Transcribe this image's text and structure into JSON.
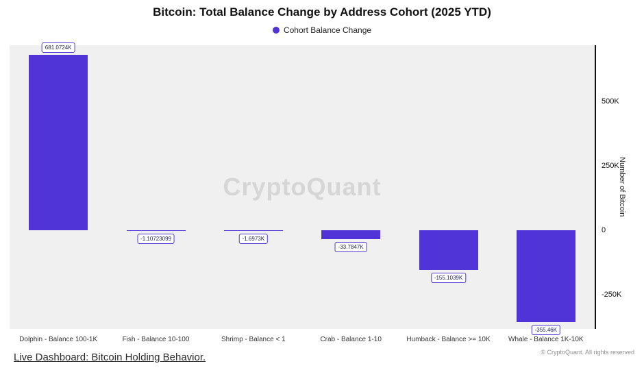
{
  "header": {
    "title": "Bitcoin: Total Balance Change by Address Cohort (2025 YTD)",
    "legend_label": "Cohort Balance Change"
  },
  "watermark": "CryptoQuant",
  "chart_data": {
    "type": "bar",
    "title": "Bitcoin: Total Balance Change by Address Cohort (2025 YTD)",
    "categories": [
      "Dolphin - Balance 100-1K",
      "Fish - Balance 10-100",
      "Shrimp - Balance < 1",
      "Crab - Balance 1-10",
      "Humback - Balance >= 10K",
      "Whale - Balance 1K-10K"
    ],
    "values_k": [
      681.0724,
      -0.0011,
      -1.6973,
      -33.7847,
      -155.1039,
      -355.46
    ],
    "value_labels": [
      "681.0724K",
      "-1.10723099",
      "-1.6973K",
      "-33.7847K",
      "-155.1039K",
      "-355.46K"
    ],
    "series_name": "Cohort Balance Change",
    "xlabel": "",
    "ylabel": "Number of Bitcoin",
    "ylim": [
      -383,
      718
    ],
    "yticks": [
      {
        "value": 500,
        "label": "500K"
      },
      {
        "value": 250,
        "label": "250K"
      },
      {
        "value": 0,
        "label": "0"
      },
      {
        "value": -250,
        "label": "-250K"
      }
    ],
    "bar_color": "#5134d8",
    "plot_background": "#f0f0f0",
    "grid": false,
    "legend_position": "top"
  },
  "footer": {
    "link_label": "Live Dashboard: Bitcoin Holding Behavior.",
    "copyright": "© CryptoQuant. All rights reserved"
  }
}
